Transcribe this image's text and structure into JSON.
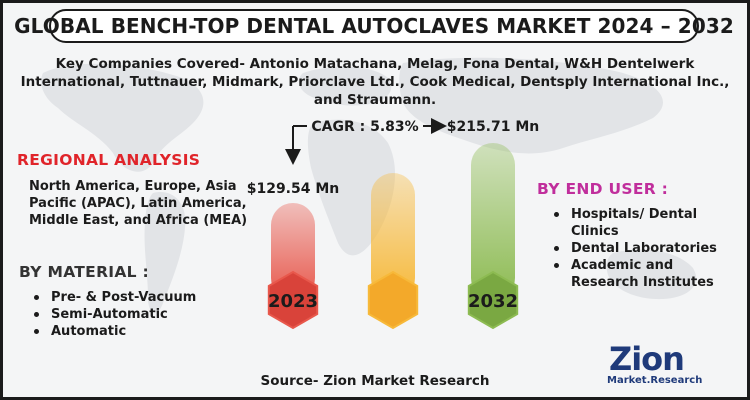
{
  "title": "GLOBAL BENCH-TOP DENTAL AUTOCLAVES MARKET 2024 – 2032",
  "companies": "Key Companies Covered- Antonio Matachana, Melag, Fona Dental, W&H Dentelwerk International, Tuttnauer, Midmark, Priorclave Ltd., Cook Medical, Dentsply International Inc., and Straumann.",
  "regional": {
    "title": "REGIONAL ANALYSIS",
    "text": "North America, Europe, Asia Pacific (APAC), Latin America, Middle East, and Africa (MEA)"
  },
  "material": {
    "title": "BY MATERIAL :",
    "items": [
      "Pre- & Post-Vacuum",
      "Semi-Automatic",
      "Automatic"
    ]
  },
  "end_user": {
    "title": "BY END USER :",
    "items": [
      "Hospitals/ Dental Clinics",
      "Dental Laboratories",
      "Academic and Research Institutes"
    ]
  },
  "source": "Source- Zion Market Research",
  "logo": {
    "name": "Zion",
    "sub": "Market.Research"
  },
  "colors": {
    "bar_2023": "#e8584c",
    "bar_mid": "#f7b93a",
    "bar_2032": "#8dbb52",
    "regional_title": "#e0242a",
    "end_user_title": "#c02e9c"
  },
  "chart_data": {
    "type": "bar",
    "categories": [
      "2023",
      "",
      "2032"
    ],
    "values": [
      129.54,
      172.6,
      215.71
    ],
    "value_labels": [
      "$129.54 Mn",
      "",
      "$215.71 Mn"
    ],
    "cagr_label": "CAGR : 5.83%",
    "unit": "USD Mn"
  }
}
